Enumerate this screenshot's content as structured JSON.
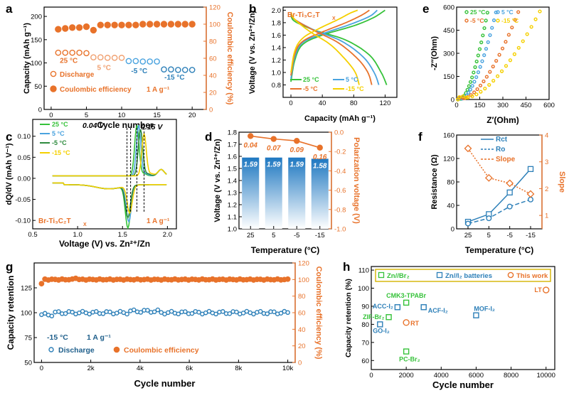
{
  "colors": {
    "orange": "#e8722a",
    "orange_light": "#f0a070",
    "blue": "#2c7fb8",
    "blue_dark": "#1f5f8b",
    "green": "#36c23a",
    "green_dark": "#2e8b3e",
    "light_blue": "#4aa3df",
    "yellow": "#f5d000",
    "black": "#000000"
  },
  "chart_data": [
    {
      "panel": "a",
      "type": "scatter",
      "xlabel": "Cycle number",
      "ylabel": "Capacity (mAh g⁻¹)",
      "y2label": "Coulombic efficiency (%)",
      "xlim": [
        -1,
        22
      ],
      "ylim": [
        0,
        220
      ],
      "y2lim": [
        0,
        120
      ],
      "xticks": [
        0,
        5,
        10,
        15,
        20
      ],
      "yticks": [
        0,
        50,
        100,
        150,
        200
      ],
      "y2ticks": [
        0,
        20,
        40,
        60,
        80,
        100,
        120
      ],
      "temp_labels": [
        {
          "text": "25 °C",
          "x": 2.5,
          "y": 100,
          "color": "#e8722a"
        },
        {
          "text": "5 °C",
          "x": 7.5,
          "y": 85,
          "color": "#f0a070"
        },
        {
          "text": "-5 °C",
          "x": 12.5,
          "y": 78,
          "color": "#2c7fb8"
        },
        {
          "text": "-15 °C",
          "x": 17.5,
          "y": 64,
          "color": "#2c7fb8"
        }
      ],
      "discharge_groups": [
        {
          "x": [
            1,
            2,
            3,
            4,
            5
          ],
          "y": [
            122,
            122,
            122,
            122,
            121
          ],
          "color": "#e8722a"
        },
        {
          "x": [
            6,
            7,
            8,
            9,
            10
          ],
          "y": [
            112,
            112,
            111,
            111,
            111
          ],
          "color": "#f0a070"
        },
        {
          "x": [
            11,
            12,
            13,
            14,
            15
          ],
          "y": [
            104,
            104,
            103,
            103,
            103
          ],
          "color": "#4aa3df"
        },
        {
          "x": [
            16,
            17,
            18,
            19,
            20
          ],
          "y": [
            86,
            86,
            85,
            85,
            85
          ],
          "color": "#2c7fb8"
        }
      ],
      "ce": {
        "x": [
          1,
          2,
          3,
          4,
          5,
          6,
          7,
          8,
          9,
          10,
          11,
          12,
          13,
          14,
          15,
          16,
          17,
          18,
          19,
          20
        ],
        "y": [
          94,
          95,
          96,
          96,
          97,
          93,
          99,
          99,
          99,
          99,
          99,
          99,
          100,
          100,
          100,
          100,
          100,
          100,
          100,
          100
        ],
        "color": "#e8722a"
      },
      "legend": [
        "Discharge",
        "Coulombic efficiency"
      ],
      "note": "1 A g⁻¹"
    },
    {
      "panel": "b",
      "type": "line",
      "title": "Br-Ti₃C₂T",
      "title_sub": "X",
      "xlabel": "Capacity (mAh g⁻¹)",
      "ylabel": "Voltage (V vs. Zn²⁺/Zn)",
      "xlim": [
        -10,
        135
      ],
      "ylim": [
        0.6,
        2.05
      ],
      "xticks": [
        0,
        40,
        80,
        120
      ],
      "yticks": [
        0.8,
        1.0,
        1.2,
        1.4,
        1.6,
        1.8,
        2.0
      ],
      "series": [
        {
          "name": "25 °C",
          "color": "#36c23a",
          "charge": [
            [
              0,
              0.85
            ],
            [
              5,
              1.2
            ],
            [
              15,
              1.45
            ],
            [
              40,
              1.6
            ],
            [
              80,
              1.75
            ],
            [
              105,
              1.88
            ],
            [
              120,
              2.0
            ]
          ],
          "discharge": [
            [
              0,
              1.92
            ],
            [
              5,
              1.82
            ],
            [
              30,
              1.68
            ],
            [
              70,
              1.52
            ],
            [
              100,
              1.28
            ],
            [
              115,
              1.0
            ],
            [
              122,
              0.8
            ]
          ]
        },
        {
          "name": "5 °C",
          "color": "#4aa3df",
          "charge": [
            [
              0,
              0.9
            ],
            [
              5,
              1.25
            ],
            [
              15,
              1.48
            ],
            [
              40,
              1.62
            ],
            [
              75,
              1.77
            ],
            [
              100,
              1.9
            ],
            [
              110,
              2.0
            ]
          ],
          "discharge": [
            [
              0,
              1.95
            ],
            [
              5,
              1.85
            ],
            [
              30,
              1.68
            ],
            [
              65,
              1.5
            ],
            [
              92,
              1.25
            ],
            [
              106,
              1.0
            ],
            [
              112,
              0.8
            ]
          ]
        },
        {
          "name": "-5 °C",
          "color": "#e8722a",
          "charge": [
            [
              0,
              0.95
            ],
            [
              5,
              1.3
            ],
            [
              15,
              1.5
            ],
            [
              40,
              1.65
            ],
            [
              70,
              1.8
            ],
            [
              90,
              1.92
            ],
            [
              100,
              2.0
            ]
          ],
          "discharge": [
            [
              0,
              1.95
            ],
            [
              5,
              1.85
            ],
            [
              30,
              1.67
            ],
            [
              60,
              1.48
            ],
            [
              85,
              1.22
            ],
            [
              98,
              1.0
            ],
            [
              103,
              0.8
            ]
          ]
        },
        {
          "name": "-15 °C",
          "color": "#f5d000",
          "charge": [
            [
              0,
              1.0
            ],
            [
              5,
              1.35
            ],
            [
              15,
              1.55
            ],
            [
              35,
              1.7
            ],
            [
              60,
              1.85
            ],
            [
              75,
              1.95
            ],
            [
              85,
              2.0
            ]
          ],
          "discharge": [
            [
              0,
              1.97
            ],
            [
              5,
              1.85
            ],
            [
              25,
              1.65
            ],
            [
              50,
              1.45
            ],
            [
              70,
              1.2
            ],
            [
              82,
              1.0
            ],
            [
              87,
              0.8
            ]
          ]
        }
      ]
    },
    {
      "panel": "e",
      "type": "scatter",
      "xlabel": "Z′(Ohm)",
      "ylabel": "-Z″(Ohm)",
      "xlim": [
        0,
        600
      ],
      "ylim": [
        0,
        600
      ],
      "xticks": [
        0,
        150,
        300,
        450,
        600
      ],
      "yticks": [
        0,
        150,
        300,
        450,
        600
      ],
      "series": [
        {
          "name": "25 °C",
          "color": "#36c23a",
          "rct": 20,
          "xend": 200
        },
        {
          "name": "5 °C",
          "color": "#4aa3df",
          "rct": 28,
          "xend": 255
        },
        {
          "name": "-5 °C",
          "color": "#e8722a",
          "rct": 40,
          "xend": 400
        },
        {
          "name": "-15 °C",
          "color": "#f5d000",
          "rct": 60,
          "xend": 540
        }
      ]
    },
    {
      "panel": "c",
      "type": "line",
      "title": "Br-Ti₃C₂T",
      "title_sub": "X",
      "xlabel": "Voltage (V) vs. Zn²⁺/Zn",
      "ylabel": "dQ/dV (mAh V⁻¹)",
      "xlim": [
        0.5,
        2.1
      ],
      "ylim": [
        -0.12,
        0.14
      ],
      "xticks": [
        0.5,
        1.0,
        1.5,
        2.0
      ],
      "yticks": [
        -0.1,
        -0.05,
        0.0,
        0.05,
        0.1
      ],
      "annot1": "0.04 V",
      "annot2": "0.15 V",
      "note": "1 A g⁻¹",
      "series": [
        {
          "name": "25 °C",
          "color": "#36c23a",
          "ox": 1.66,
          "oh": 0.12,
          "rx": 1.56,
          "rh": 0.1
        },
        {
          "name": "5 °C",
          "color": "#4aa3df",
          "ox": 1.68,
          "oh": 0.12,
          "rx": 1.57,
          "rh": 0.085
        },
        {
          "name": "-5 °C",
          "color": "#2e8b3e",
          "ox": 1.7,
          "oh": 0.11,
          "rx": 1.56,
          "rh": 0.075
        },
        {
          "name": "-15 °C",
          "color": "#f5d000",
          "ox": 1.74,
          "oh": 0.1,
          "rx": 1.58,
          "rh": 0.065
        }
      ]
    },
    {
      "panel": "d",
      "type": "bar",
      "categories": [
        "25",
        "5",
        "-5",
        "-15"
      ],
      "values": [
        1.59,
        1.59,
        1.59,
        1.58
      ],
      "value_labels": [
        "1.59",
        "1.59",
        "1.59",
        "1.58"
      ],
      "pol_values": [
        0.04,
        0.07,
        0.09,
        0.16
      ],
      "pol_labels": [
        "0.04",
        "0.07",
        "0.09",
        "0.16"
      ],
      "xlabel": "Temperature (°C)",
      "ylabel": "Voltage (V vs. Zn²⁺/Zn)",
      "y2label": "Polarization voltage (V)",
      "ylim": [
        1.0,
        1.8
      ],
      "y2lim": [
        -1.0,
        0.0
      ],
      "yticks": [
        1.0,
        1.1,
        1.2,
        1.3,
        1.4,
        1.5,
        1.6,
        1.7,
        1.8
      ],
      "y2ticks": [
        -1.0,
        -0.8,
        -0.6,
        -0.4,
        -0.2,
        0.0
      ]
    },
    {
      "panel": "f",
      "type": "line",
      "categories": [
        "25",
        "5",
        "-5",
        "-15"
      ],
      "xlabel": "Temperature (°C)",
      "ylabel": "Resistance (Ω)",
      "y2label": "Slope",
      "ylim": [
        0,
        160
      ],
      "y2lim": [
        0.5,
        4
      ],
      "yticks": [
        0,
        40,
        80,
        120,
        160
      ],
      "y2ticks": [
        1,
        2,
        3,
        4
      ],
      "series": [
        {
          "name": "Rct",
          "color": "#2c7fb8",
          "values": [
            12,
            25,
            62,
            102
          ],
          "axis": "left",
          "dash": false
        },
        {
          "name": "Ro",
          "color": "#2c7fb8",
          "values": [
            9,
            18,
            38,
            50
          ],
          "axis": "left",
          "dash": true
        },
        {
          "name": "Slope",
          "color": "#e8722a",
          "values": [
            3.5,
            2.4,
            2.2,
            1.8
          ],
          "axis": "right",
          "dash": true
        }
      ]
    },
    {
      "panel": "g",
      "type": "scatter",
      "xlabel": "Cycle number",
      "ylabel": "Capacity retention",
      "y2label": "Coulombic efficiency (%)",
      "xlim": [
        -300,
        10300
      ],
      "ylim": [
        50,
        150
      ],
      "y2lim": [
        0,
        120
      ],
      "xticks": [
        0,
        2000,
        4000,
        6000,
        8000,
        10000
      ],
      "xticklabels": [
        "0",
        "2k",
        "4k",
        "6k",
        "8k",
        "10k"
      ],
      "yticks": [
        50,
        75,
        100,
        125
      ],
      "y2ticks": [
        0,
        20,
        40,
        60,
        80,
        100,
        120
      ],
      "retention_level": 100,
      "ce_level": 100,
      "legend": [
        "Discharge",
        "Coulombic efficiency"
      ],
      "note1": "-15 °C",
      "note2": "1 A g⁻¹"
    },
    {
      "panel": "h",
      "type": "scatter",
      "xlabel": "Cycle number",
      "ylabel": "Capacity retention (%)",
      "xlim": [
        0,
        10500
      ],
      "ylim": [
        55,
        112
      ],
      "xticks": [
        0,
        2000,
        4000,
        6000,
        8000,
        10000
      ],
      "yticks": [
        60,
        70,
        80,
        90,
        100,
        110
      ],
      "legend": [
        "Zn//Br₂",
        "Zn//I₂ batteries",
        "This work"
      ],
      "points": [
        {
          "label": "CMK3-TPABr",
          "x": 2000,
          "y": 92,
          "group": "br"
        },
        {
          "label": "ACC-I₂",
          "x": 1500,
          "y": 89.5,
          "group": "i"
        },
        {
          "label": "ZIF-Br₂",
          "x": 1000,
          "y": 84,
          "group": "br"
        },
        {
          "label": "GO-I₂",
          "x": 500,
          "y": 80,
          "group": "i"
        },
        {
          "label": "ACF-I₂",
          "x": 3000,
          "y": 89.5,
          "group": "i"
        },
        {
          "label": "MOF-I₂",
          "x": 6000,
          "y": 85,
          "group": "i"
        },
        {
          "label": "PC-Br₂",
          "x": 2000,
          "y": 65,
          "group": "br"
        },
        {
          "label": "RT",
          "x": 2000,
          "y": 81,
          "group": "this"
        },
        {
          "label": "LT",
          "x": 10000,
          "y": 99,
          "group": "this"
        }
      ]
    }
  ],
  "panel_letters": [
    "a",
    "b",
    "e",
    "c",
    "d",
    "f",
    "g",
    "h"
  ]
}
